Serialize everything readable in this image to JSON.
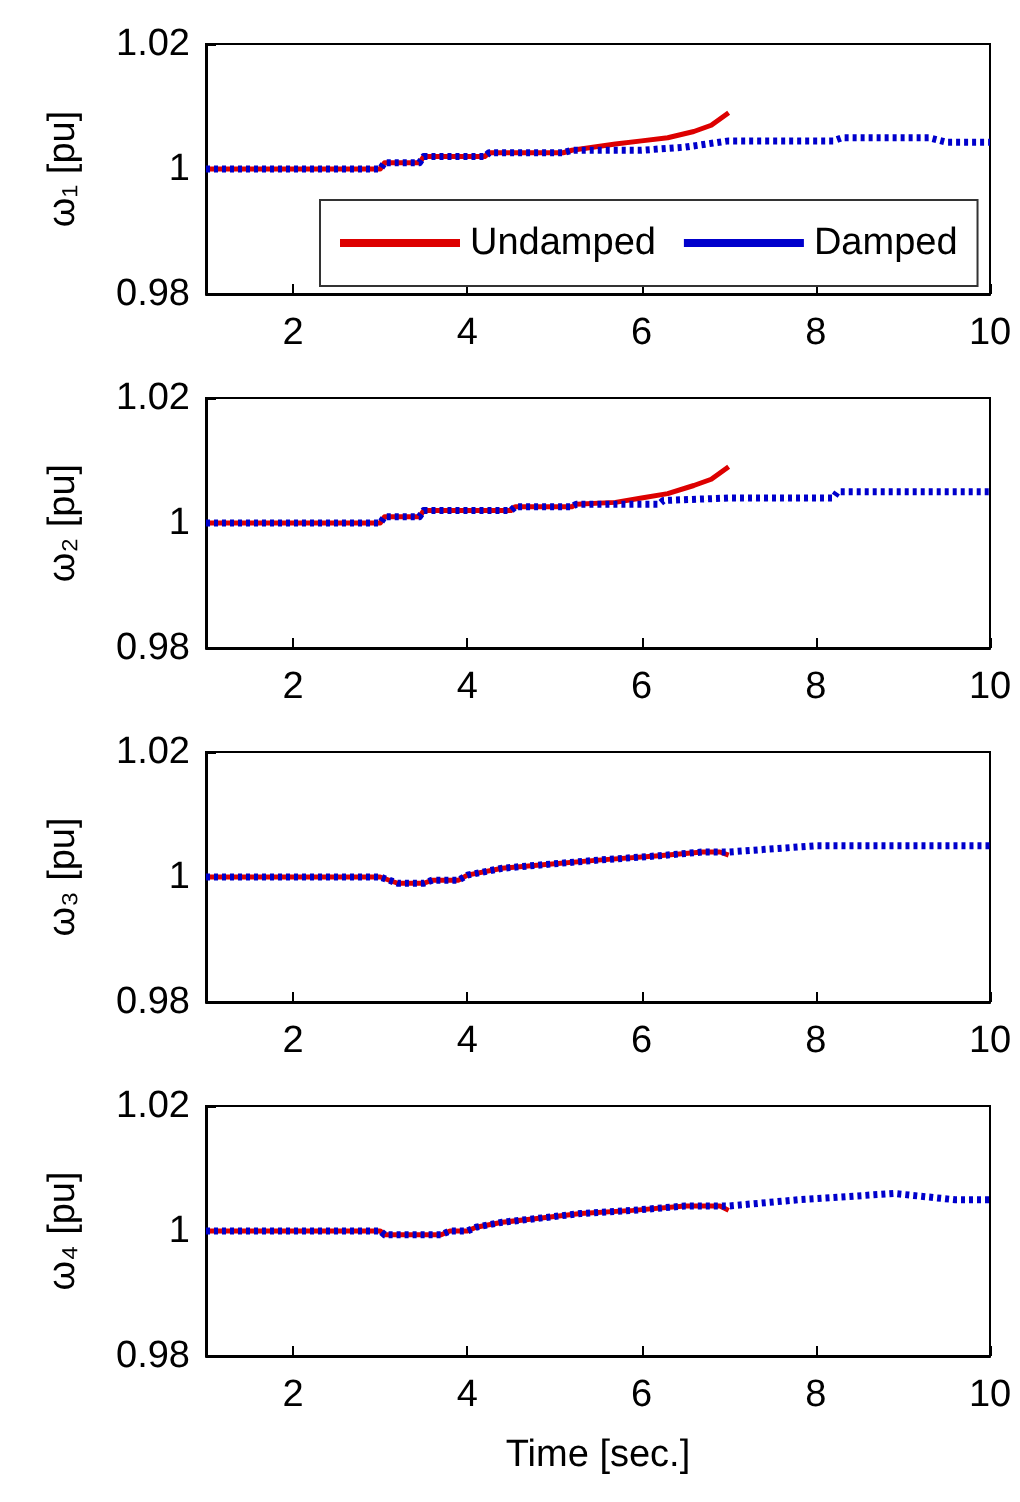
{
  "chart_data": [
    {
      "type": "line",
      "ylabel": "ω₁ [pu]",
      "xlim": [
        1,
        10
      ],
      "ylim": [
        0.98,
        1.02
      ],
      "xticks": [
        2,
        4,
        6,
        8,
        10
      ],
      "yticks": [
        0.98,
        1,
        1.02
      ],
      "legend": "bottom",
      "marker": "none",
      "series": [
        {
          "name": "Undamped",
          "color": "#dd0000",
          "line_style": "solid",
          "x": [
            1,
            3,
            3.05,
            3.45,
            3.5,
            4.2,
            4.25,
            5.1,
            5.2,
            5.7,
            6.0,
            6.3,
            6.6,
            6.8,
            7.0
          ],
          "values": [
            1,
            1,
            1.001,
            1.001,
            1.002,
            1.002,
            1.0026,
            1.0026,
            1.003,
            1.004,
            1.0045,
            1.005,
            1.006,
            1.007,
            1.009
          ]
        },
        {
          "name": "Damped",
          "color": "#0000cc",
          "line_style": "dotted",
          "x": [
            1,
            3,
            3.05,
            3.45,
            3.5,
            4.2,
            4.25,
            5.1,
            5.2,
            6.0,
            6.5,
            7.0,
            8.2,
            8.3,
            9.3,
            9.5,
            10
          ],
          "values": [
            1,
            1,
            1.001,
            1.001,
            1.002,
            1.002,
            1.0026,
            1.0026,
            1.003,
            1.003,
            1.0035,
            1.0045,
            1.0045,
            1.005,
            1.005,
            1.0043,
            1.0043
          ]
        }
      ]
    },
    {
      "type": "line",
      "ylabel": "ω₂ [pu]",
      "xlim": [
        1,
        10
      ],
      "ylim": [
        0.98,
        1.02
      ],
      "xticks": [
        2,
        4,
        6,
        8,
        10
      ],
      "yticks": [
        0.98,
        1,
        1.02
      ],
      "marker": "none",
      "series": [
        {
          "color": "#dd0000",
          "line_style": "solid",
          "x": [
            1,
            3,
            3.05,
            3.45,
            3.5,
            4.5,
            4.55,
            5.2,
            5.25,
            5.7,
            6.0,
            6.3,
            6.6,
            6.8,
            7.0
          ],
          "values": [
            1,
            1,
            1.001,
            1.001,
            1.002,
            1.002,
            1.0026,
            1.0026,
            1.003,
            1.0033,
            1.004,
            1.0047,
            1.006,
            1.007,
            1.009
          ]
        },
        {
          "color": "#0000cc",
          "line_style": "dotted",
          "x": [
            1,
            3,
            3.05,
            3.45,
            3.5,
            4.5,
            4.55,
            5.2,
            5.25,
            6.2,
            6.25,
            7.0,
            8.2,
            8.25,
            10
          ],
          "values": [
            1,
            1,
            1.001,
            1.001,
            1.002,
            1.002,
            1.0026,
            1.0026,
            1.003,
            1.003,
            1.0036,
            1.004,
            1.004,
            1.005,
            1.005
          ]
        }
      ]
    },
    {
      "type": "line",
      "ylabel": "ω₃ [pu]",
      "xlim": [
        1,
        10
      ],
      "ylim": [
        0.98,
        1.02
      ],
      "xticks": [
        2,
        4,
        6,
        8,
        10
      ],
      "yticks": [
        0.98,
        1,
        1.02
      ],
      "marker": "none",
      "series": [
        {
          "color": "#dd0000",
          "line_style": "solid",
          "x": [
            1,
            3,
            3.2,
            3.5,
            3.6,
            3.9,
            4.0,
            4.4,
            4.9,
            5.5,
            6.2,
            6.7,
            6.9,
            7.0
          ],
          "values": [
            1,
            1,
            0.999,
            0.999,
            0.9995,
            0.9995,
            1.0003,
            1.0014,
            1.002,
            1.0027,
            1.0034,
            1.004,
            1.004,
            1.0035
          ]
        },
        {
          "color": "#0000cc",
          "line_style": "dotted",
          "x": [
            1,
            3,
            3.2,
            3.5,
            3.6,
            3.9,
            4.0,
            4.4,
            4.9,
            5.5,
            6.2,
            6.7,
            7.0,
            8.0,
            10
          ],
          "values": [
            1,
            1,
            0.999,
            0.999,
            0.9995,
            0.9995,
            1.0003,
            1.0014,
            1.002,
            1.0027,
            1.0034,
            1.004,
            1.004,
            1.005,
            1.005
          ]
        }
      ]
    },
    {
      "type": "line",
      "ylabel": "ω₄ [pu]",
      "xlabel": "Time [sec.]",
      "xlim": [
        1,
        10
      ],
      "ylim": [
        0.98,
        1.02
      ],
      "xticks": [
        2,
        4,
        6,
        8,
        10
      ],
      "yticks": [
        0.98,
        1,
        1.02
      ],
      "marker": "none",
      "series": [
        {
          "color": "#dd0000",
          "line_style": "solid",
          "x": [
            1,
            3,
            3.05,
            3.7,
            3.8,
            4.0,
            4.1,
            4.4,
            4.8,
            5.3,
            5.9,
            6.5,
            6.9,
            7.0
          ],
          "values": [
            1,
            1,
            0.9994,
            0.9994,
            1.0,
            1.0,
            1.0006,
            1.0014,
            1.002,
            1.0028,
            1.0033,
            1.004,
            1.004,
            1.0033
          ]
        },
        {
          "color": "#0000cc",
          "line_style": "dotted",
          "x": [
            1,
            3,
            3.05,
            3.7,
            3.8,
            4.0,
            4.1,
            4.4,
            4.8,
            5.3,
            5.9,
            6.5,
            7.0,
            7.8,
            8.9,
            9.6,
            10
          ],
          "values": [
            1,
            1,
            0.9994,
            0.9994,
            1.0,
            1.0,
            1.0006,
            1.0014,
            1.002,
            1.0028,
            1.0033,
            1.004,
            1.004,
            1.005,
            1.006,
            1.005,
            1.005
          ]
        }
      ]
    }
  ]
}
